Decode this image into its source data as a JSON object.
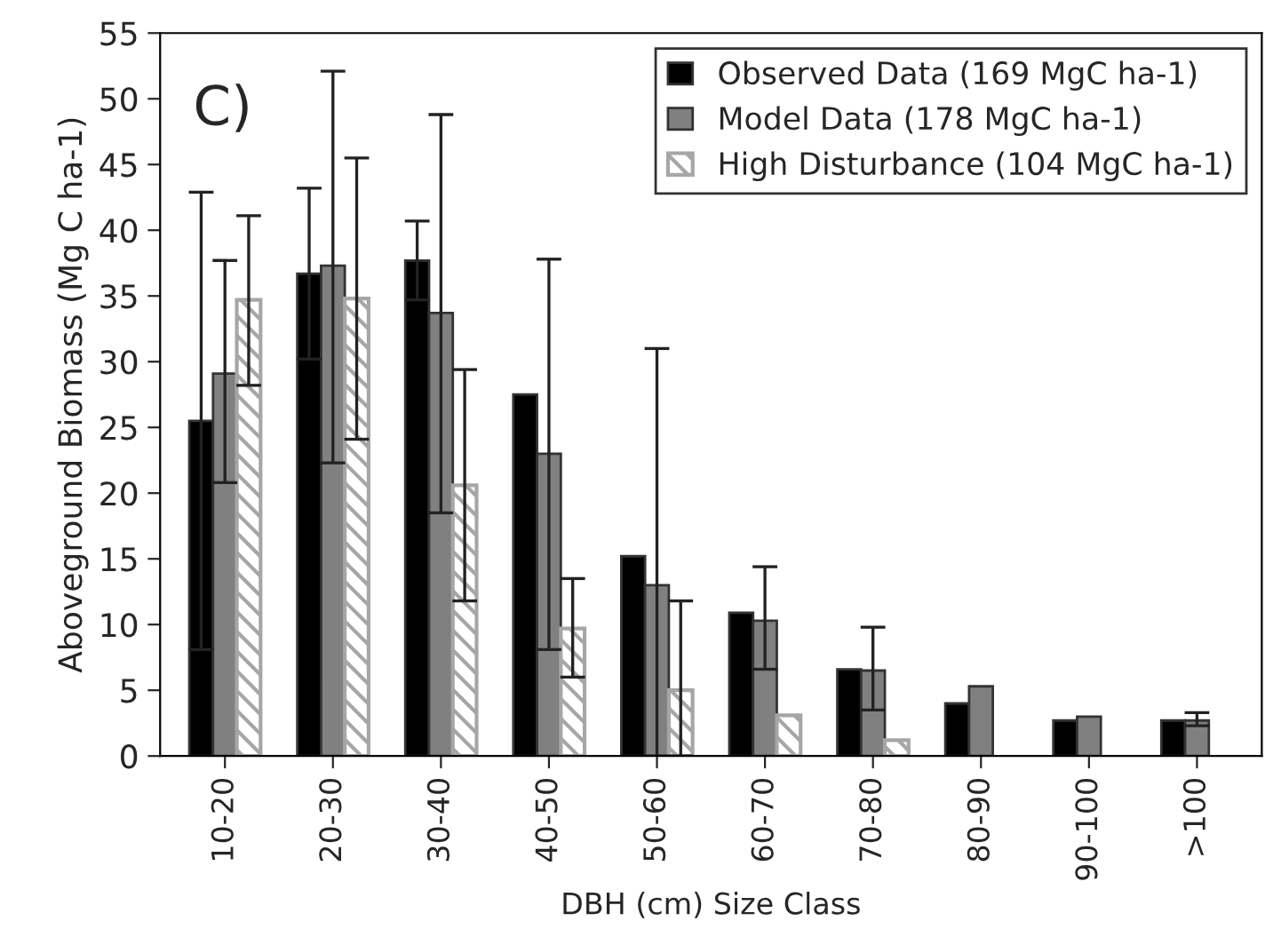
{
  "chart_data": {
    "type": "bar",
    "xlabel": "DBH (cm) Size Class",
    "ylabel": "Aboveground Biomass (Mg C ha-1)",
    "annotations": [
      "C)"
    ],
    "categories": [
      "10-20",
      "20-30",
      "30-40",
      "40-50",
      "50-60",
      "60-70",
      "70-80",
      "80-90",
      "90-100",
      ">100"
    ],
    "series": [
      {
        "name": "Observed Data (169 MgC ha-1)",
        "color": "#000000",
        "values": [
          25.5,
          36.7,
          37.7,
          27.5,
          15.2,
          10.9,
          6.6,
          4.0,
          2.7,
          2.7
        ],
        "errors": [
          17.4,
          6.5,
          3.0,
          null,
          null,
          null,
          null,
          null,
          null,
          null
        ]
      },
      {
        "name": "Model Data (178 MgC ha-1)",
        "color": "#808080",
        "values": [
          29.1,
          37.3,
          33.7,
          23.0,
          13.0,
          10.3,
          6.5,
          5.3,
          3.0,
          2.7
        ],
        "errors": [
          [
            20.8,
            37.7
          ],
          [
            22.3,
            52.1
          ],
          [
            18.5,
            48.8
          ],
          [
            8.1,
            37.8
          ],
          [
            0,
            31.0
          ],
          [
            6.6,
            14.4
          ],
          [
            3.5,
            9.8
          ],
          null,
          null,
          [
            2.3,
            3.3
          ]
        ]
      },
      {
        "name": "High Disturbance (104 MgC ha-1)",
        "color": "#a6a6a6",
        "values": [
          34.7,
          34.8,
          20.6,
          9.7,
          5.0,
          3.1,
          1.2,
          null,
          null,
          null
        ],
        "errors": [
          [
            28.2,
            41.1
          ],
          [
            24.1,
            45.5
          ],
          [
            11.8,
            29.4
          ],
          [
            6.0,
            13.5
          ],
          [
            0,
            11.8
          ],
          null,
          null,
          null,
          null,
          null
        ]
      }
    ],
    "ylim": [
      0,
      55
    ],
    "yticks": [
      0,
      5,
      10,
      15,
      20,
      25,
      30,
      35,
      40,
      45,
      50,
      55
    ],
    "grid": false,
    "legend": "top right"
  }
}
